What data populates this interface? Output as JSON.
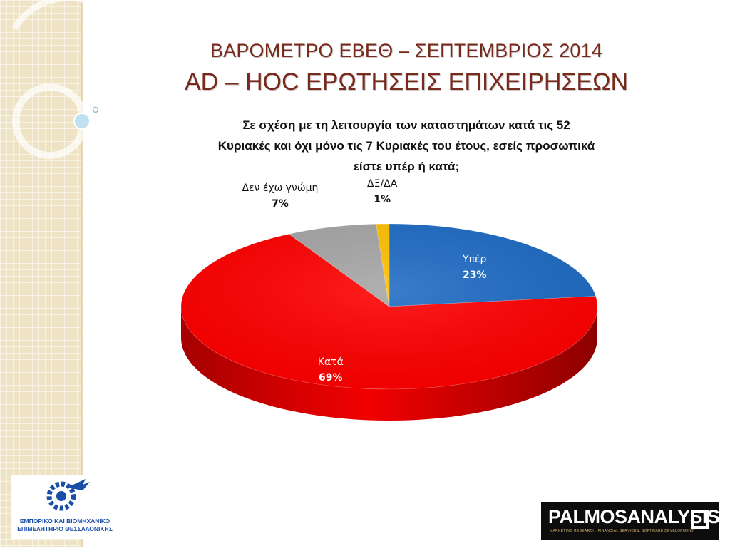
{
  "header": {
    "title_line1": "ΒΑΡΟΜΕΤΡΟ ΕΒΕΘ – ΣΕΠΤΕΜΒΡΙΟΣ 2014",
    "title_line2": "AD – HOC ΕΡΩΤΗΣΕΙΣ ΕΠΙΧΕΙΡΗΣΕΩΝ"
  },
  "question": {
    "line1": "Σε σχέση με τη λειτουργία των καταστημάτων κατά τις 52",
    "line2": "Κυριακές και όχι μόνο τις 7 Κυριακές του έτους, εσείς προσωπικά",
    "line3": "είστε υπέρ ή κατά;"
  },
  "chart_data": {
    "type": "pie",
    "style": "3d",
    "slices": [
      {
        "label": "Υπέρ",
        "value": 23,
        "value_label": "23%",
        "color": "#1f6bc4",
        "label_color": "#ffffff"
      },
      {
        "label": "Κατά",
        "value": 69,
        "value_label": "69%",
        "color": "#ff0000",
        "label_color": "#ffffff"
      },
      {
        "label": "Δεν έχω γνώμη",
        "value": 7,
        "value_label": "7%",
        "color": "#a6a6a6",
        "label_color": "#111111"
      },
      {
        "label": "ΔΞ/ΔΑ",
        "value": 1,
        "value_label": "1%",
        "color": "#ffc000",
        "label_color": "#111111"
      }
    ]
  },
  "logos": {
    "left_line1": "ΕΜΠΟΡΙΚΟ ΚΑΙ ΒΙΟΜΗΧΑΝΙΚΟ",
    "left_line2": "ΕΠΙΜΕΛΗΤΗΡΙΟ ΘΕΣΣΑΛΟΝΙΚΗΣ",
    "right_text": "PALMOSANALYSIS",
    "right_subtext": "MARKETING RESEARCH, FINANCIAL SERVICES, SOFTWARE DEVELOPMENT"
  },
  "colors": {
    "title": "#7a2a1c",
    "sidebar": "#efe3c6"
  }
}
